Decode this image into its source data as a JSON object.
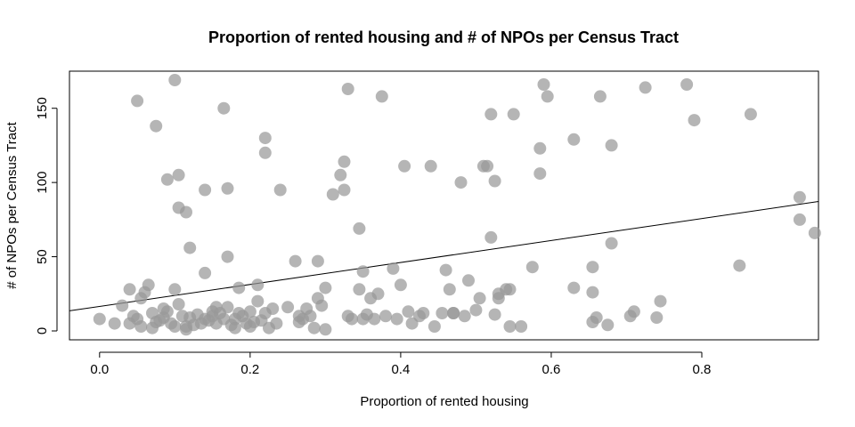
{
  "chart_data": {
    "type": "scatter",
    "title": "Proportion of rented housing and # of NPOs per Census Tract",
    "xlabel": "Proportion of rented housing",
    "ylabel": "# of NPOs per Census Tract",
    "xlim": [
      -0.04,
      0.955
    ],
    "ylim": [
      -6,
      175
    ],
    "x_ticks": [
      "0.0",
      "0.2",
      "0.4",
      "0.6",
      "0.8"
    ],
    "x_tick_values": [
      0.0,
      0.2,
      0.4,
      0.6,
      0.8
    ],
    "y_ticks": [
      "0",
      "50",
      "100",
      "150"
    ],
    "y_tick_values": [
      0,
      50,
      100,
      150
    ],
    "grid": false,
    "legend": "none",
    "point_color": "#999999",
    "line_color": "#000000",
    "trend_line": {
      "intercept": 16.5,
      "slope": 74.0
    },
    "points": [
      [
        0.0,
        8
      ],
      [
        0.02,
        5
      ],
      [
        0.03,
        17
      ],
      [
        0.04,
        28
      ],
      [
        0.04,
        5
      ],
      [
        0.045,
        10
      ],
      [
        0.05,
        155
      ],
      [
        0.05,
        8
      ],
      [
        0.055,
        22
      ],
      [
        0.055,
        3
      ],
      [
        0.06,
        26
      ],
      [
        0.065,
        31
      ],
      [
        0.07,
        12
      ],
      [
        0.07,
        2
      ],
      [
        0.075,
        138
      ],
      [
        0.075,
        6
      ],
      [
        0.08,
        7
      ],
      [
        0.085,
        15
      ],
      [
        0.085,
        9
      ],
      [
        0.09,
        102
      ],
      [
        0.09,
        13
      ],
      [
        0.095,
        5
      ],
      [
        0.1,
        28
      ],
      [
        0.1,
        169
      ],
      [
        0.1,
        3
      ],
      [
        0.105,
        83
      ],
      [
        0.105,
        105
      ],
      [
        0.105,
        18
      ],
      [
        0.11,
        10
      ],
      [
        0.115,
        80
      ],
      [
        0.115,
        3
      ],
      [
        0.115,
        1
      ],
      [
        0.12,
        56
      ],
      [
        0.12,
        9
      ],
      [
        0.125,
        4
      ],
      [
        0.13,
        11
      ],
      [
        0.135,
        5
      ],
      [
        0.14,
        95
      ],
      [
        0.14,
        39
      ],
      [
        0.14,
        8
      ],
      [
        0.145,
        7
      ],
      [
        0.15,
        10
      ],
      [
        0.15,
        13
      ],
      [
        0.155,
        16
      ],
      [
        0.155,
        5
      ],
      [
        0.16,
        12
      ],
      [
        0.165,
        150
      ],
      [
        0.165,
        8
      ],
      [
        0.17,
        50
      ],
      [
        0.17,
        96
      ],
      [
        0.17,
        16
      ],
      [
        0.175,
        4
      ],
      [
        0.18,
        2
      ],
      [
        0.18,
        8
      ],
      [
        0.185,
        29
      ],
      [
        0.185,
        12
      ],
      [
        0.19,
        10
      ],
      [
        0.195,
        5
      ],
      [
        0.2,
        13
      ],
      [
        0.2,
        3
      ],
      [
        0.205,
        6
      ],
      [
        0.21,
        31
      ],
      [
        0.21,
        20
      ],
      [
        0.215,
        7
      ],
      [
        0.22,
        120
      ],
      [
        0.22,
        130
      ],
      [
        0.22,
        12
      ],
      [
        0.225,
        2
      ],
      [
        0.23,
        15
      ],
      [
        0.235,
        5
      ],
      [
        0.24,
        95
      ],
      [
        0.25,
        16
      ],
      [
        0.26,
        47
      ],
      [
        0.265,
        10
      ],
      [
        0.265,
        6
      ],
      [
        0.27,
        8
      ],
      [
        0.275,
        15
      ],
      [
        0.28,
        10
      ],
      [
        0.285,
        2
      ],
      [
        0.29,
        47
      ],
      [
        0.29,
        22
      ],
      [
        0.295,
        17
      ],
      [
        0.3,
        1
      ],
      [
        0.3,
        29
      ],
      [
        0.31,
        92
      ],
      [
        0.32,
        105
      ],
      [
        0.325,
        114
      ],
      [
        0.325,
        95
      ],
      [
        0.33,
        163
      ],
      [
        0.33,
        10
      ],
      [
        0.335,
        8
      ],
      [
        0.345,
        69
      ],
      [
        0.345,
        28
      ],
      [
        0.35,
        40
      ],
      [
        0.35,
        8
      ],
      [
        0.355,
        11
      ],
      [
        0.36,
        22
      ],
      [
        0.365,
        8
      ],
      [
        0.37,
        25
      ],
      [
        0.375,
        158
      ],
      [
        0.38,
        10
      ],
      [
        0.39,
        42
      ],
      [
        0.395,
        8
      ],
      [
        0.4,
        31
      ],
      [
        0.405,
        111
      ],
      [
        0.41,
        13
      ],
      [
        0.415,
        5
      ],
      [
        0.425,
        10
      ],
      [
        0.43,
        12
      ],
      [
        0.44,
        111
      ],
      [
        0.445,
        3
      ],
      [
        0.455,
        12
      ],
      [
        0.46,
        41
      ],
      [
        0.465,
        28
      ],
      [
        0.47,
        12
      ],
      [
        0.47,
        12
      ],
      [
        0.48,
        100
      ],
      [
        0.485,
        10
      ],
      [
        0.49,
        34
      ],
      [
        0.5,
        14
      ],
      [
        0.505,
        22
      ],
      [
        0.51,
        111
      ],
      [
        0.515,
        111
      ],
      [
        0.52,
        63
      ],
      [
        0.52,
        146
      ],
      [
        0.525,
        101
      ],
      [
        0.525,
        11
      ],
      [
        0.53,
        22
      ],
      [
        0.53,
        25
      ],
      [
        0.54,
        28
      ],
      [
        0.545,
        28
      ],
      [
        0.545,
        3
      ],
      [
        0.55,
        146
      ],
      [
        0.56,
        3
      ],
      [
        0.575,
        43
      ],
      [
        0.585,
        123
      ],
      [
        0.585,
        106
      ],
      [
        0.59,
        166
      ],
      [
        0.595,
        158
      ],
      [
        0.63,
        129
      ],
      [
        0.63,
        29
      ],
      [
        0.655,
        43
      ],
      [
        0.655,
        26
      ],
      [
        0.655,
        6
      ],
      [
        0.66,
        9
      ],
      [
        0.665,
        158
      ],
      [
        0.675,
        4
      ],
      [
        0.68,
        125
      ],
      [
        0.68,
        59
      ],
      [
        0.705,
        10
      ],
      [
        0.71,
        13
      ],
      [
        0.725,
        164
      ],
      [
        0.74,
        9
      ],
      [
        0.745,
        20
      ],
      [
        0.78,
        166
      ],
      [
        0.79,
        142
      ],
      [
        0.85,
        44
      ],
      [
        0.865,
        146
      ],
      [
        0.93,
        75
      ],
      [
        0.93,
        90
      ],
      [
        0.95,
        66
      ]
    ]
  }
}
